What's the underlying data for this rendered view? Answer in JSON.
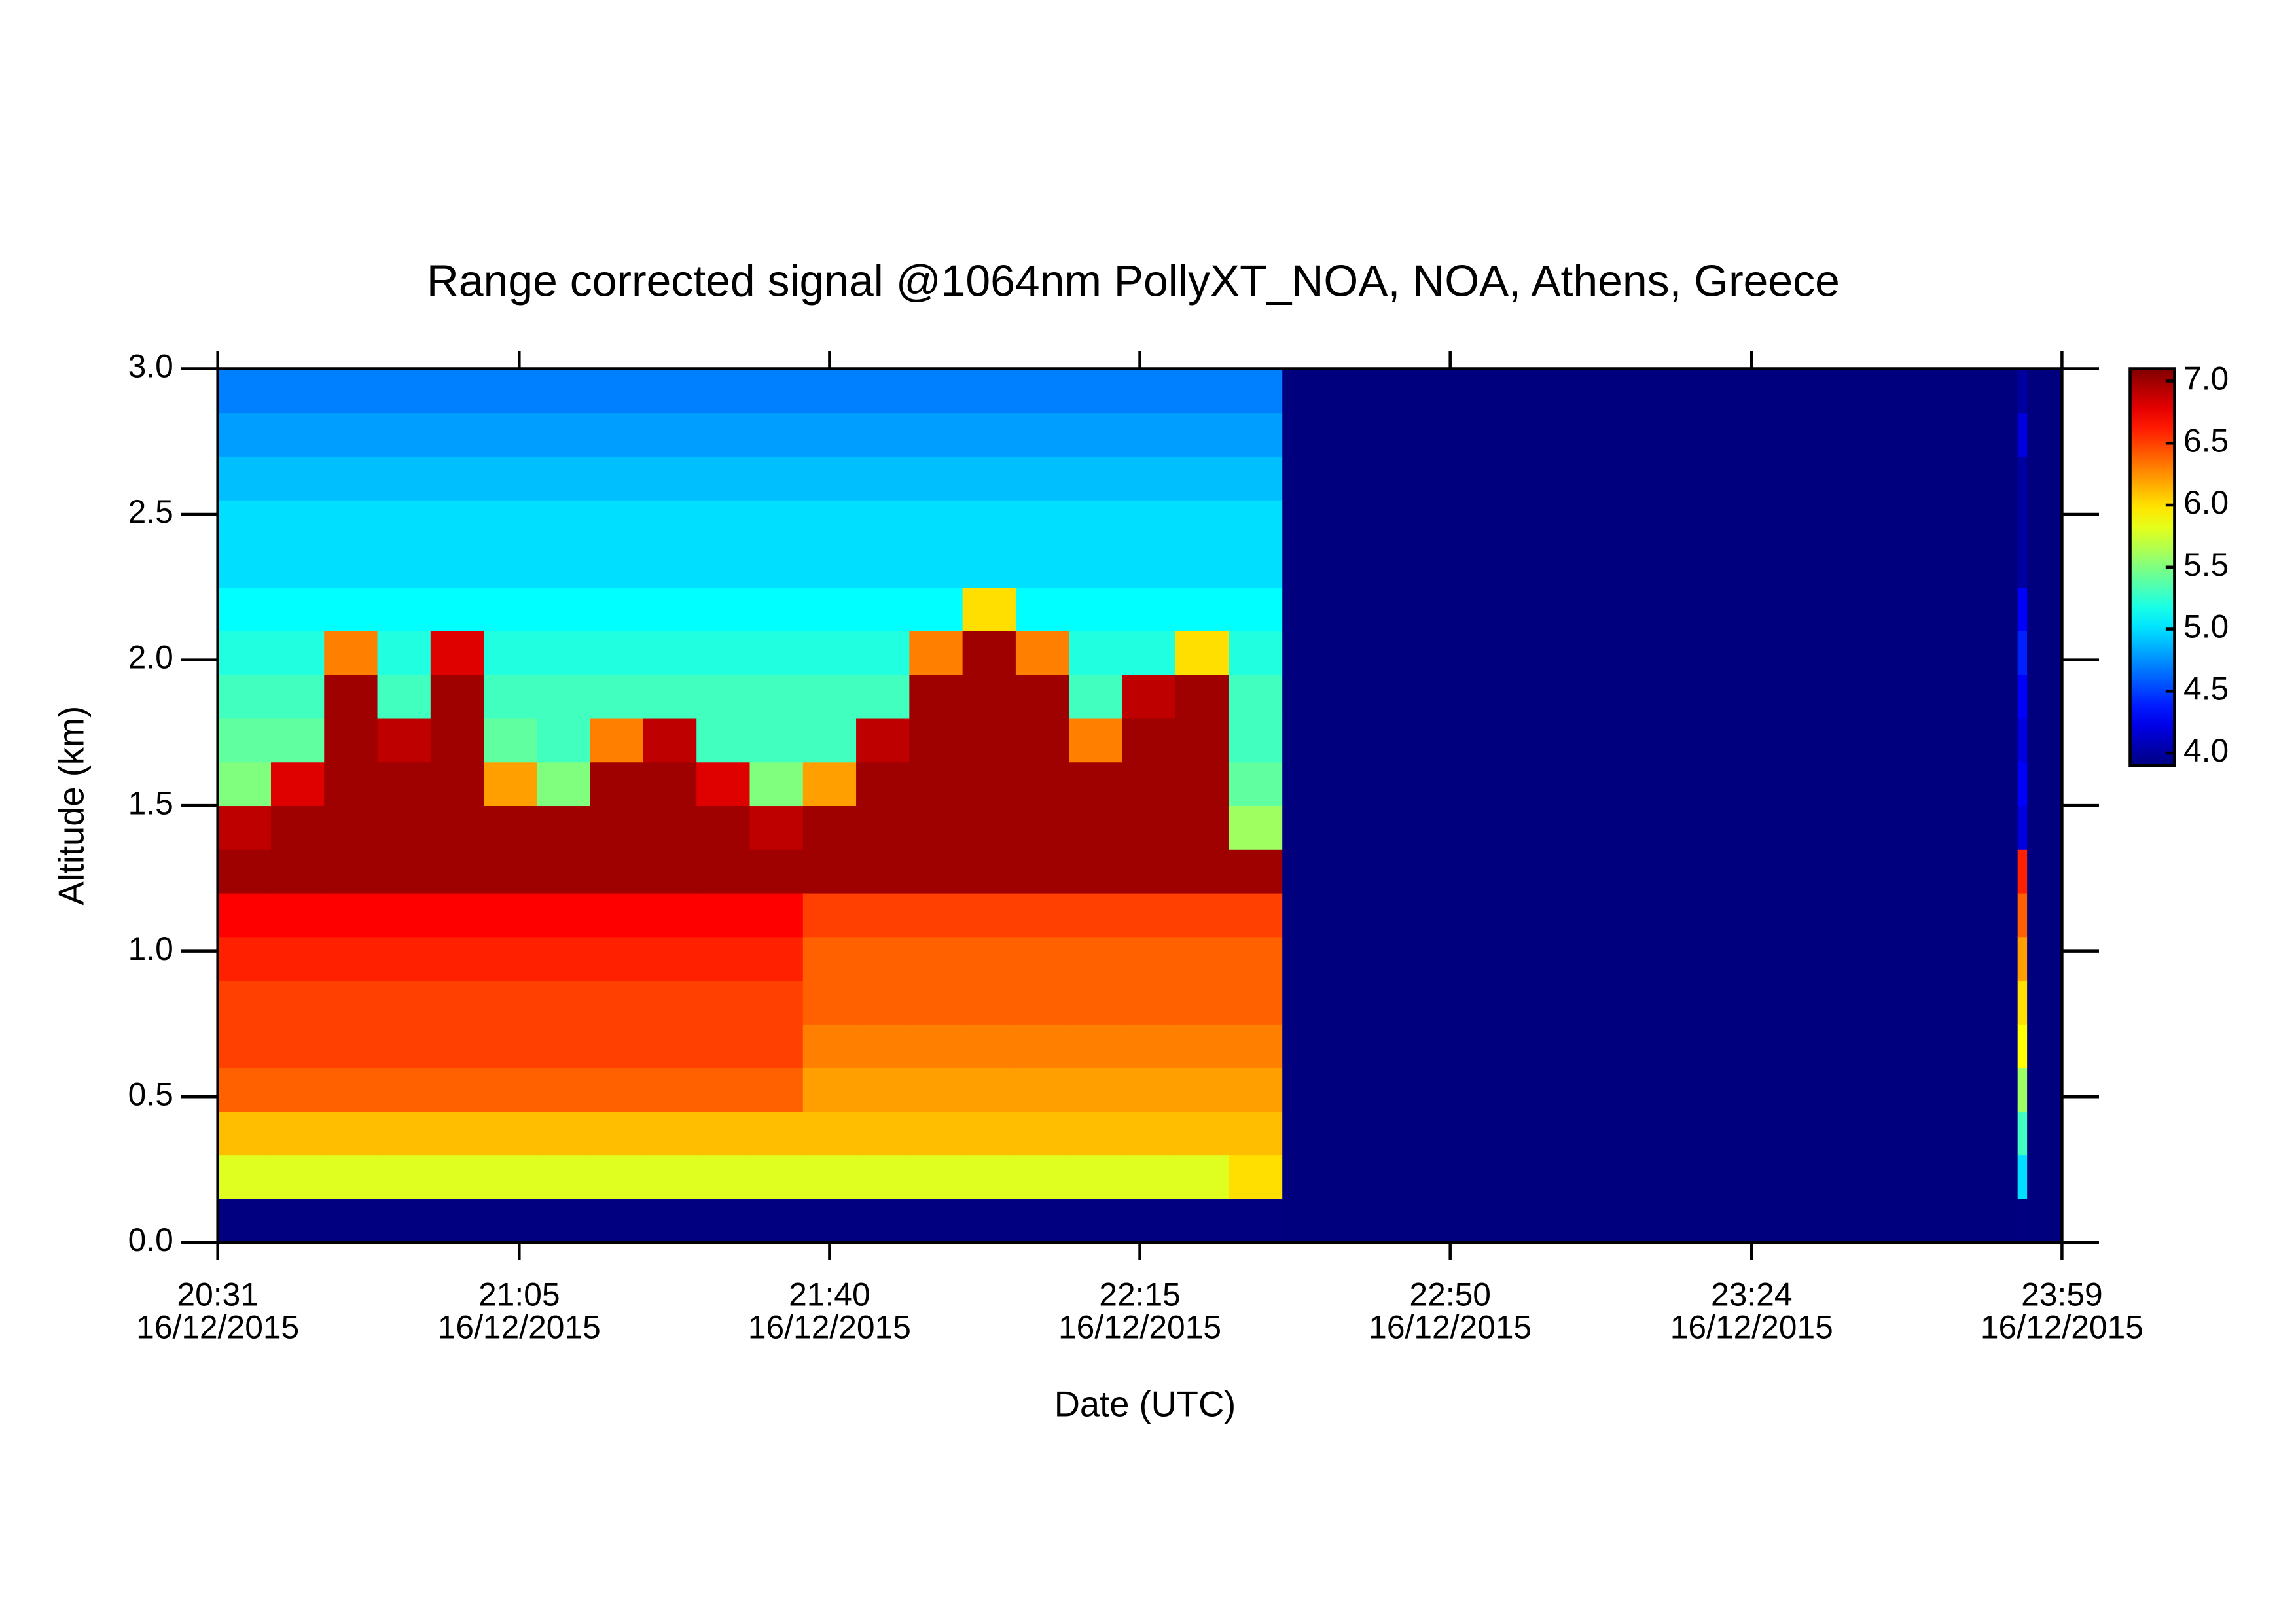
{
  "chart_data": {
    "type": "heatmap",
    "title": "Range corrected signal @1064nm  PollyXT_NOA, NOA, Athens, Greece",
    "xlabel": "Date (UTC)",
    "ylabel": "Altitude (km)",
    "date": "16/12/2015",
    "xlim": [
      "20:31",
      "23:59"
    ],
    "xticks": [
      "20:31",
      "21:05",
      "21:40",
      "22:15",
      "22:50",
      "23:24",
      "23:59"
    ],
    "ylim": [
      0,
      3
    ],
    "yticks": [
      {
        "value": 0,
        "label": "0.0"
      },
      {
        "value": 0.5,
        "label": "0.5"
      },
      {
        "value": 1,
        "label": "1.0"
      },
      {
        "value": 1.5,
        "label": "1.5"
      },
      {
        "value": 2,
        "label": "2.0"
      },
      {
        "value": 2.5,
        "label": "2.5"
      },
      {
        "value": 3,
        "label": "3.0"
      }
    ],
    "zlim": [
      3.9,
      7.1
    ],
    "zticks": [
      {
        "value": 4,
        "label": "4.0"
      },
      {
        "value": 4.5,
        "label": "4.5"
      },
      {
        "value": 5,
        "label": "5.0"
      },
      {
        "value": 5.5,
        "label": "5.5"
      },
      {
        "value": 6,
        "label": "6.0"
      },
      {
        "value": 6.5,
        "label": "6.5"
      },
      {
        "value": 7,
        "label": "7.0"
      }
    ],
    "colormap": "jet",
    "background": "#00007f",
    "x_bins": [
      "20:31",
      "20:37",
      "20:43",
      "20:49",
      "20:55",
      "21:01",
      "21:07",
      "21:13",
      "21:19",
      "21:25",
      "21:31",
      "21:37",
      "21:43",
      "21:49",
      "21:55",
      "22:01",
      "22:07",
      "22:13",
      "22:19",
      "22:25",
      "22:31",
      "23:54",
      "23:55"
    ],
    "y_bins": [
      0,
      0.15,
      0.3,
      0.45,
      0.6,
      0.75,
      0.9,
      1.05,
      1.2,
      1.35,
      1.5,
      1.65,
      1.8,
      1.95,
      2.1,
      2.25,
      2.4,
      2.55,
      2.7,
      2.85,
      3.0
    ],
    "z": [
      [
        3.9,
        3.9,
        3.9,
        3.9,
        3.9,
        3.9,
        3.9,
        3.9,
        3.9,
        3.9,
        3.9,
        3.9,
        3.9,
        3.9,
        3.9,
        3.9,
        3.9,
        3.9,
        3.9,
        3.9,
        null,
        3.9
      ],
      [
        5.8,
        5.8,
        5.8,
        5.8,
        5.8,
        5.8,
        5.8,
        5.8,
        5.8,
        5.8,
        5.8,
        5.8,
        5.8,
        5.8,
        5.8,
        5.8,
        5.8,
        5.8,
        5.8,
        6.0,
        null,
        5.0
      ],
      [
        6.1,
        6.1,
        6.1,
        6.1,
        6.1,
        6.1,
        6.1,
        6.1,
        6.1,
        6.1,
        6.1,
        6.1,
        6.1,
        6.1,
        6.1,
        6.1,
        6.1,
        6.1,
        6.1,
        6.1,
        null,
        5.3
      ],
      [
        6.4,
        6.4,
        6.4,
        6.4,
        6.4,
        6.4,
        6.4,
        6.4,
        6.4,
        6.4,
        6.4,
        6.2,
        6.2,
        6.2,
        6.2,
        6.2,
        6.2,
        6.2,
        6.2,
        6.2,
        null,
        5.6
      ],
      [
        6.5,
        6.5,
        6.5,
        6.5,
        6.5,
        6.5,
        6.5,
        6.5,
        6.5,
        6.5,
        6.5,
        6.3,
        6.3,
        6.3,
        6.3,
        6.3,
        6.3,
        6.3,
        6.3,
        6.3,
        null,
        5.9
      ],
      [
        6.5,
        6.5,
        6.5,
        6.5,
        6.5,
        6.5,
        6.5,
        6.5,
        6.5,
        6.5,
        6.5,
        6.4,
        6.4,
        6.4,
        6.4,
        6.4,
        6.4,
        6.4,
        6.4,
        6.4,
        null,
        6.0
      ],
      [
        6.6,
        6.6,
        6.6,
        6.6,
        6.6,
        6.6,
        6.6,
        6.6,
        6.6,
        6.6,
        6.6,
        6.4,
        6.4,
        6.4,
        6.4,
        6.4,
        6.4,
        6.4,
        6.4,
        6.4,
        null,
        6.2
      ],
      [
        6.7,
        6.7,
        6.7,
        6.7,
        6.7,
        6.7,
        6.7,
        6.7,
        6.7,
        6.7,
        6.7,
        6.5,
        6.5,
        6.5,
        6.5,
        6.5,
        6.5,
        6.5,
        6.5,
        6.5,
        null,
        6.4
      ],
      [
        7.0,
        7.0,
        7.0,
        7.0,
        7.0,
        7.0,
        7.0,
        7.0,
        7.0,
        7.0,
        7.0,
        7.0,
        7.0,
        7.0,
        7.0,
        7.0,
        7.0,
        7.0,
        7.0,
        7.0,
        null,
        6.6
      ],
      [
        6.9,
        7.0,
        7.0,
        7.0,
        7.0,
        7.0,
        7.0,
        7.0,
        7.0,
        7.0,
        6.9,
        7.0,
        7.0,
        7.0,
        7.0,
        7.0,
        7.0,
        7.0,
        7.0,
        5.6,
        null,
        4.2
      ],
      [
        5.5,
        6.8,
        7.0,
        7.0,
        7.0,
        6.2,
        5.5,
        7.0,
        7.0,
        6.8,
        5.5,
        6.2,
        7.0,
        7.0,
        7.0,
        7.0,
        7.0,
        7.0,
        7.0,
        5.4,
        null,
        4.3
      ],
      [
        5.4,
        5.4,
        7.0,
        6.9,
        7.0,
        5.4,
        5.3,
        6.3,
        6.9,
        5.3,
        5.3,
        5.3,
        6.9,
        7.0,
        7.0,
        7.0,
        6.3,
        7.0,
        7.0,
        5.3,
        null,
        4.2
      ],
      [
        5.3,
        5.3,
        7.0,
        5.3,
        7.0,
        5.3,
        5.3,
        5.3,
        5.3,
        5.3,
        5.3,
        5.3,
        5.3,
        7.0,
        7.0,
        7.0,
        5.3,
        6.9,
        7.0,
        5.3,
        null,
        4.3
      ],
      [
        5.2,
        5.2,
        6.3,
        5.2,
        6.8,
        5.2,
        5.2,
        5.2,
        5.2,
        5.2,
        5.2,
        5.2,
        5.2,
        6.3,
        7.0,
        6.3,
        5.2,
        5.2,
        6.0,
        5.2,
        null,
        4.4
      ],
      [
        5.1,
        5.1,
        5.1,
        5.1,
        5.1,
        5.1,
        5.1,
        5.1,
        5.1,
        5.1,
        5.1,
        5.1,
        5.1,
        5.1,
        6.0,
        5.1,
        5.1,
        5.1,
        5.1,
        5.1,
        null,
        4.3
      ],
      [
        5.0,
        5.0,
        5.0,
        5.0,
        5.0,
        5.0,
        5.0,
        5.0,
        5.0,
        5.0,
        5.0,
        5.0,
        5.0,
        5.0,
        5.0,
        5.0,
        5.0,
        5.0,
        5.0,
        5.0,
        null,
        4.0
      ],
      [
        5.0,
        5.0,
        5.0,
        5.0,
        5.0,
        5.0,
        5.0,
        5.0,
        5.0,
        5.0,
        5.0,
        5.0,
        5.0,
        5.0,
        5.0,
        5.0,
        5.0,
        5.0,
        5.0,
        5.0,
        null,
        4.0
      ],
      [
        4.9,
        4.9,
        4.9,
        4.9,
        4.9,
        4.9,
        4.9,
        4.9,
        4.9,
        4.9,
        4.9,
        4.9,
        4.9,
        4.9,
        4.9,
        4.9,
        4.9,
        4.9,
        4.9,
        4.9,
        null,
        4.0
      ],
      [
        4.8,
        4.8,
        4.8,
        4.8,
        4.8,
        4.8,
        4.8,
        4.8,
        4.8,
        4.8,
        4.8,
        4.8,
        4.8,
        4.8,
        4.8,
        4.8,
        4.8,
        4.8,
        4.8,
        4.8,
        null,
        4.2
      ],
      [
        4.7,
        4.7,
        4.7,
        4.7,
        4.7,
        4.7,
        4.7,
        4.7,
        4.7,
        4.7,
        4.7,
        4.7,
        4.7,
        4.7,
        4.7,
        4.7,
        4.7,
        4.7,
        4.7,
        4.7,
        null,
        4.0
      ]
    ]
  }
}
